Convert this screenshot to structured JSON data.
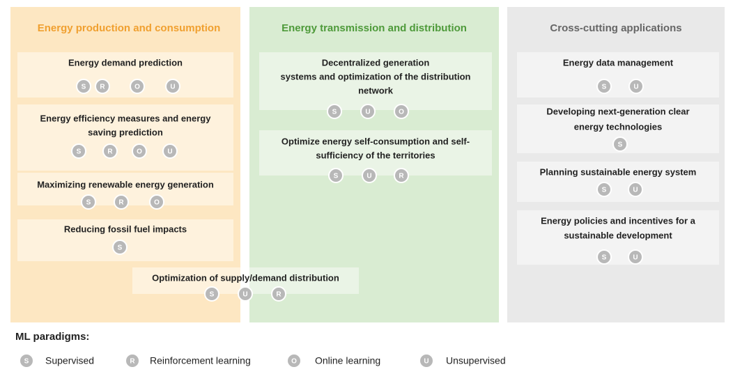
{
  "columns": [
    {
      "title": "Energy production and consumption",
      "items": [
        {
          "lines": [
            "Energy demand prediction"
          ],
          "badges": [
            "S",
            "R",
            "O",
            "U"
          ]
        },
        {
          "lines": [
            "Energy efficiency measures and energy",
            "saving prediction"
          ],
          "badges": [
            "S",
            "R",
            "O",
            "U"
          ]
        },
        {
          "lines": [
            "Maximizing renewable energy generation"
          ],
          "badges": [
            "S",
            "R",
            "O"
          ]
        },
        {
          "lines": [
            "Reducing fossil fuel impacts"
          ],
          "badges": [
            "S"
          ]
        }
      ]
    },
    {
      "title": "Energy transmission and distribution",
      "items": [
        {
          "lines": [
            "Decentralized generation",
            "systems and optimization of the distribution",
            "network"
          ],
          "badges": [
            "S",
            "U",
            "O"
          ]
        },
        {
          "lines": [
            "Optimize energy self-consumption and self-",
            "sufficiency of the territories"
          ],
          "badges": [
            "S",
            "U",
            "R"
          ]
        }
      ]
    },
    {
      "title": "Cross-cutting applications",
      "items": [
        {
          "lines": [
            "Energy data management"
          ],
          "badges": [
            "S",
            "U"
          ]
        },
        {
          "lines": [
            "Developing next-generation clear",
            "energy technologies"
          ],
          "badges": [
            "S"
          ]
        },
        {
          "lines": [
            "Planning sustainable energy system"
          ],
          "badges": [
            "S",
            "U"
          ]
        },
        {
          "lines": [
            "Energy policies and incentives for a",
            "sustainable development"
          ],
          "badges": [
            "S",
            "U"
          ]
        }
      ]
    }
  ],
  "shared_item": {
    "lines": [
      "Optimization of  supply/demand distribution"
    ],
    "badges": [
      "S",
      "U",
      "R"
    ]
  },
  "legend": {
    "title": "ML paradigms:",
    "items": [
      {
        "letter": "S",
        "label": "Supervised"
      },
      {
        "letter": "R",
        "label": "Reinforcement learning"
      },
      {
        "letter": "O",
        "label": "Online learning"
      },
      {
        "letter": "U",
        "label": "Unsupervised"
      }
    ]
  }
}
